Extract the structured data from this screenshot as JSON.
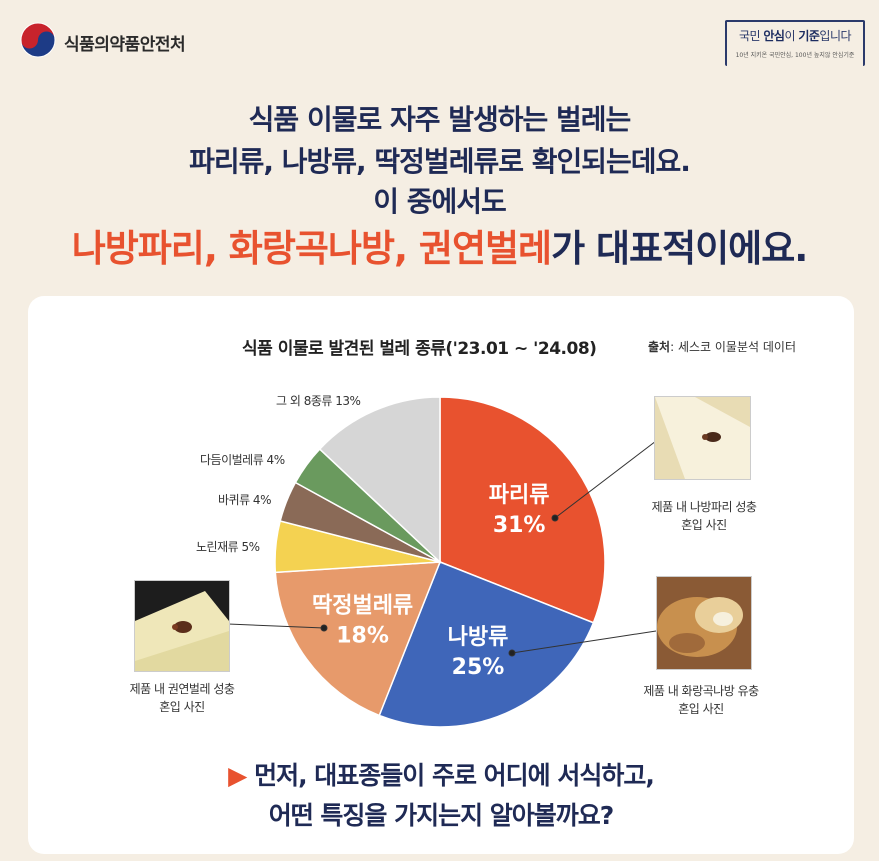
{
  "header": {
    "gov_name": "식품의약품안전처",
    "slogan_prefix": "국민 ",
    "slogan_bold1": "안심",
    "slogan_mid": "이 ",
    "slogan_bold2": "기준",
    "slogan_suffix": "입니다",
    "slogan_sub": "10년 지키온 국민안심, 100년 높지않 안심기준"
  },
  "headline": {
    "line1": "식품 이물로 자주 발생하는 벌레는",
    "line2": "파리류, 나방류, 딱정벌레류로 확인되는데요.",
    "line3": "이 중에서도",
    "line4_red": "나방파리, 화랑곡나방, 권연벌레",
    "line4_rest": "가 대표적이에요."
  },
  "chart_data": {
    "type": "pie",
    "title": "식품 이물로 발견된 벌레 종류('23.01 ~ '24.08)",
    "source_label": "출처",
    "source": ": 세스코 이물분석 데이터",
    "slices": [
      {
        "name": "파리류",
        "value": 31,
        "label": "31%",
        "color": "#e8522f"
      },
      {
        "name": "나방류",
        "value": 25,
        "label": "25%",
        "color": "#3f66b9"
      },
      {
        "name": "딱정벌레류",
        "value": 18,
        "label": "18%",
        "color": "#e79a6b"
      },
      {
        "name": "노린재류",
        "value": 5,
        "label": "노린재류 5%",
        "color": "#f4d251"
      },
      {
        "name": "바퀴류",
        "value": 4,
        "label": "바퀴류 4%",
        "color": "#8a6a57"
      },
      {
        "name": "다듬이벌레류",
        "value": 4,
        "label": "다듬이벌레류 4%",
        "color": "#6a9a5e"
      },
      {
        "name": "그 외 8종류",
        "value": 13,
        "label": "그 외 8종류 13%",
        "color": "#d6d6d6"
      }
    ]
  },
  "captions": {
    "fly": [
      "제품 내 나방파리 성충",
      "혼입 사진"
    ],
    "moth": [
      "제품 내 화랑곡나방 유충",
      "혼입 사진"
    ],
    "beetle": [
      "제품 내 권연벌레 성충",
      "혼입 사진"
    ]
  },
  "bottom": {
    "arrow": "▶",
    "line1": "먼저, 대표종들이 주로 어디에 서식하고,",
    "line2": "어떤 특징을 가지는지 알아볼까요?"
  }
}
